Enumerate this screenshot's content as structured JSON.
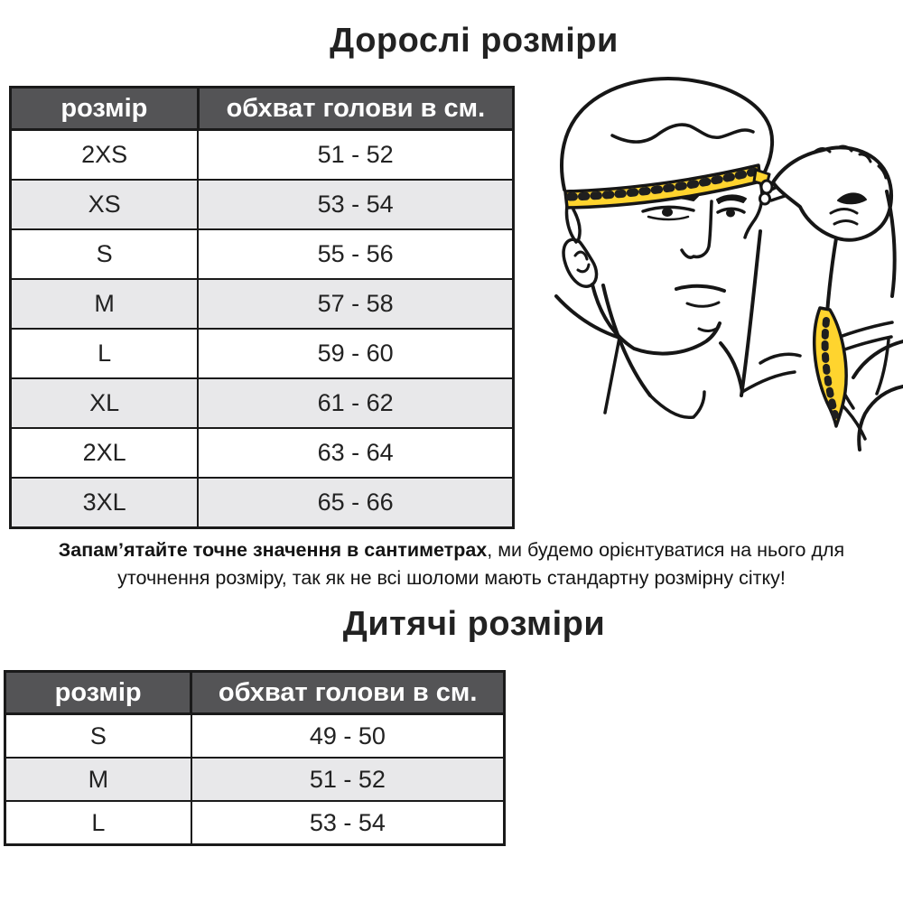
{
  "adult_section": {
    "title": "Дорослі розміри",
    "table": {
      "columns": [
        "розмір",
        "обхват голови в см."
      ],
      "rows": [
        [
          "2XS",
          "51 - 52"
        ],
        [
          "XS",
          "53 - 54"
        ],
        [
          "S",
          "55 - 56"
        ],
        [
          "M",
          "57 - 58"
        ],
        [
          "L",
          "59 - 60"
        ],
        [
          "XL",
          "61 - 62"
        ],
        [
          "2XL",
          "63 - 64"
        ],
        [
          "3XL",
          "65 - 66"
        ]
      ]
    }
  },
  "note": {
    "bold": "Запам’ятайте точне значення в сантиметрах",
    "rest": ", ми будемо орієнтуватися на нього для уточнення розміру, так як не всі шоломи мають стандартну розмірну сітку!"
  },
  "kids_section": {
    "title": "Дитячі розміри",
    "table": {
      "columns": [
        "розмір",
        "обхват голови в см."
      ],
      "rows": [
        [
          "S",
          "49 - 50"
        ],
        [
          "M",
          "51 - 52"
        ],
        [
          "L",
          "53 - 54"
        ]
      ]
    }
  },
  "illustration": {
    "description": "Чоловік вимірює обхват голови жовтою сантиметровою стрічкою"
  },
  "colors": {
    "header_bg": "#545456",
    "header_text": "#ffffff",
    "row_alt": "#e8e8ea",
    "border": "#1a1a1a",
    "tape_yellow": "#ffd42e",
    "line": "#161616"
  }
}
